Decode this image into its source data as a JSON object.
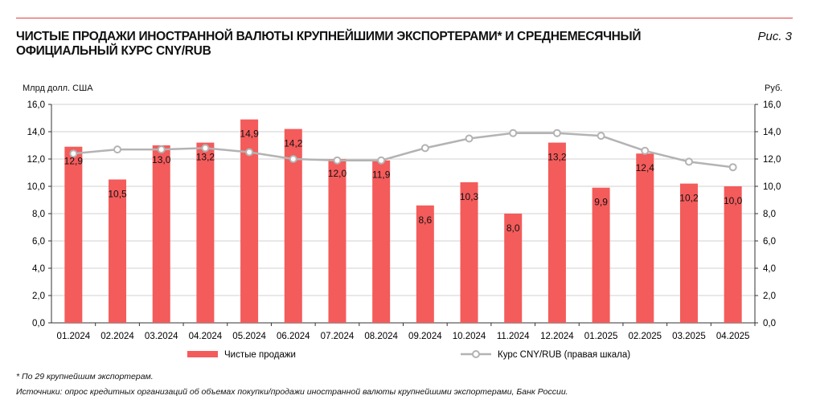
{
  "title": "ЧИСТЫЕ ПРОДАЖИ ИНОСТРАННОЙ ВАЛЮТЫ КРУПНЕЙШИМИ ЭКСПОРТЕРАМИ* И СРЕДНЕМЕСЯЧНЫЙ ОФИЦИАЛЬНЫЙ КУРС CNY/RUB",
  "figure_label": "Рис. 3",
  "footnote": "* По 29 крупнейшим экспортерам.",
  "source": "Источники: опрос кредитных организаций об объемах покупки/продажи иностранной валюты крупнейшими экспортерами, Банк России.",
  "chart_data": {
    "type": "bar+line",
    "categories": [
      "01.2024",
      "02.2024",
      "03.2024",
      "04.2024",
      "05.2024",
      "06.2024",
      "07.2024",
      "08.2024",
      "09.2024",
      "10.2024",
      "11.2024",
      "12.2024",
      "01.2025",
      "02.2025",
      "03.2025",
      "04.2025"
    ],
    "series": [
      {
        "name": "Чистые продажи",
        "type": "bar",
        "axis": "left",
        "color": "#f45b5b",
        "values": [
          12.9,
          10.5,
          13.0,
          13.2,
          14.9,
          14.2,
          12.0,
          11.9,
          8.6,
          10.3,
          8.0,
          13.2,
          9.9,
          12.4,
          10.2,
          10.0
        ],
        "labels": [
          "12,9",
          "10,5",
          "13,0",
          "13,2",
          "14,9",
          "14,2",
          "12,0",
          "11,9",
          "8,6",
          "10,3",
          "8,0",
          "13,2",
          "9,9",
          "12,4",
          "10,2",
          "10,0"
        ]
      },
      {
        "name": "Курс CNY/RUB (правая шкала)",
        "type": "line",
        "axis": "right",
        "color": "#b3b3b3",
        "values": [
          12.4,
          12.7,
          12.7,
          12.8,
          12.5,
          12.0,
          11.9,
          11.9,
          12.8,
          13.5,
          13.9,
          13.9,
          13.7,
          12.6,
          11.8,
          11.4
        ]
      }
    ],
    "ylabel_left": "Млрд долл. США",
    "ylabel_right": "Руб.",
    "ylim": [
      0,
      16
    ],
    "yticks": [
      "0,0",
      "2,0",
      "4,0",
      "6,0",
      "8,0",
      "10,0",
      "12,0",
      "14,0",
      "16,0"
    ],
    "grid": true,
    "legend_position": "bottom"
  }
}
